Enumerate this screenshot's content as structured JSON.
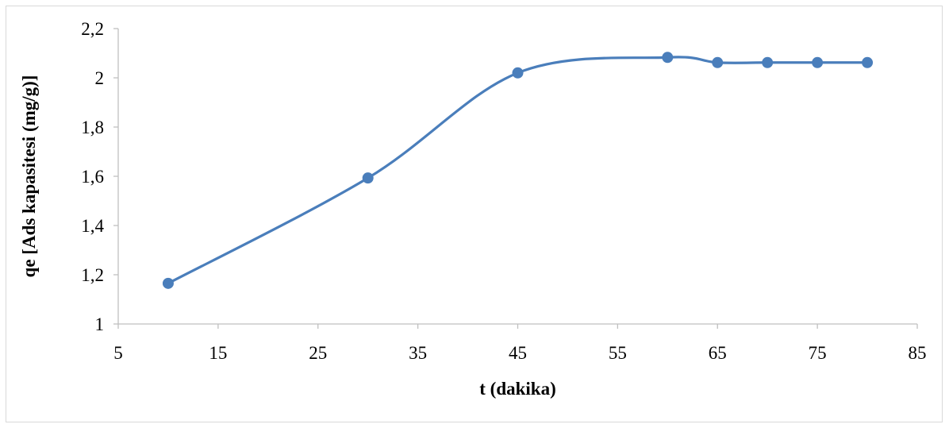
{
  "chart_data": {
    "type": "line",
    "smooth": true,
    "markers": true,
    "title": "",
    "xlabel": "t (dakika)",
    "ylabel": "qe [Ads kapasitesi (mg/g)]",
    "xlim": [
      5,
      85
    ],
    "ylim": [
      1,
      2.2
    ],
    "x_ticks": [
      5,
      15,
      25,
      35,
      45,
      55,
      65,
      75,
      85
    ],
    "y_ticks": [
      1,
      1.2,
      1.4,
      1.6,
      1.8,
      2,
      2.2
    ],
    "x_tick_labels": [
      "5",
      "15",
      "25",
      "35",
      "45",
      "55",
      "65",
      "75",
      "85"
    ],
    "y_tick_labels": [
      "1",
      "1,2",
      "1,4",
      "1,6",
      "1,8",
      "2",
      "2,2"
    ],
    "grid": false,
    "legend": "none",
    "series": [
      {
        "color": "#4a7ebb",
        "x": [
          10,
          30,
          45,
          60,
          65,
          70,
          75,
          80
        ],
        "y": [
          1.165,
          1.593,
          2.02,
          2.083,
          2.062,
          2.062,
          2.062,
          2.062
        ]
      }
    ]
  }
}
